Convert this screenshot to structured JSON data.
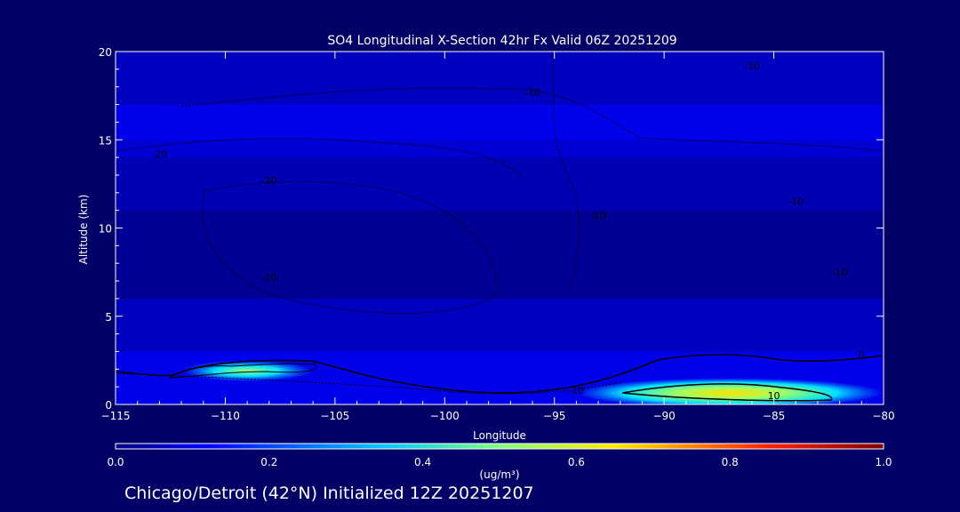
{
  "chart_data": {
    "type": "heatmap",
    "title": "SO4 Longitudinal X-Section 42hr  Fx Valid 06Z 20251209",
    "xlabel": "Longitude",
    "ylabel": "Altitude (km)",
    "xlim": [
      -115,
      -80
    ],
    "ylim": [
      0,
      20
    ],
    "x_ticks": [
      -115,
      -110,
      -105,
      -100,
      -95,
      -90,
      -85,
      -80
    ],
    "x_tick_labels": [
      "−115",
      "−110",
      "−105",
      "−100",
      "−95",
      "−90",
      "−85",
      "−80"
    ],
    "y_ticks": [
      0,
      5,
      10,
      15,
      20
    ],
    "y_tick_labels": [
      "0",
      "5",
      "10",
      "15",
      "20"
    ],
    "colorbar": {
      "min": 0.0,
      "max": 1.0,
      "ticks": [
        0.0,
        0.2,
        0.4,
        0.6,
        0.8,
        1.0
      ],
      "tick_labels": [
        "0.0",
        "0.2",
        "0.4",
        "0.6",
        "0.8",
        "1.0"
      ],
      "unit_label": "(ug/m³)"
    },
    "field_bands": [
      {
        "value": 0.06,
        "alt_range": [
          17,
          20
        ]
      },
      {
        "value": 0.1,
        "alt_range": [
          15,
          17
        ]
      },
      {
        "value": 0.08,
        "alt_range": [
          14,
          15
        ]
      },
      {
        "value": 0.05,
        "alt_range": [
          11,
          14
        ]
      },
      {
        "value": 0.02,
        "alt_range": [
          6,
          11
        ]
      },
      {
        "value": 0.06,
        "alt_range": [
          3,
          6
        ]
      },
      {
        "value": 0.1,
        "alt_range": [
          0,
          3
        ]
      }
    ],
    "plumes": [
      {
        "name": "western plume",
        "lon_range": [
          -112,
          -106
        ],
        "alt_range": [
          1.5,
          2.3
        ],
        "peak_value": 0.4
      },
      {
        "name": "eastern plume",
        "lon_range": [
          -94,
          -80
        ],
        "alt_range": [
          0,
          1.3
        ],
        "peak_value": 0.65
      }
    ],
    "temperature_contours": [
      {
        "label": "-10",
        "lon": -86,
        "alt": 19
      },
      {
        "label": "-10",
        "lon": -96,
        "alt": 17.5
      },
      {
        "label": "-10",
        "lon": -84,
        "alt": 11.3
      },
      {
        "label": "-10",
        "lon": -82,
        "alt": 7.3
      },
      {
        "label": "-10",
        "lon": -93,
        "alt": 10.5
      },
      {
        "label": "-10",
        "lon": -94,
        "alt": 0.6
      },
      {
        "label": "-20",
        "lon": -113,
        "alt": 14
      },
      {
        "label": "-20",
        "lon": -108,
        "alt": 12.5
      },
      {
        "label": "-20",
        "lon": -108,
        "alt": 7
      },
      {
        "label": "0",
        "lon": -81,
        "alt": 2.6
      },
      {
        "label": "10",
        "lon": -85,
        "alt": 0.3
      }
    ]
  },
  "footer": {
    "caption": "Chicago/Detroit (42°N) Initialized 12Z 20251207"
  },
  "colors": {
    "background": "#000066",
    "plot_deep": "#000080",
    "axis": "#ffffff",
    "contour": "#000000"
  }
}
